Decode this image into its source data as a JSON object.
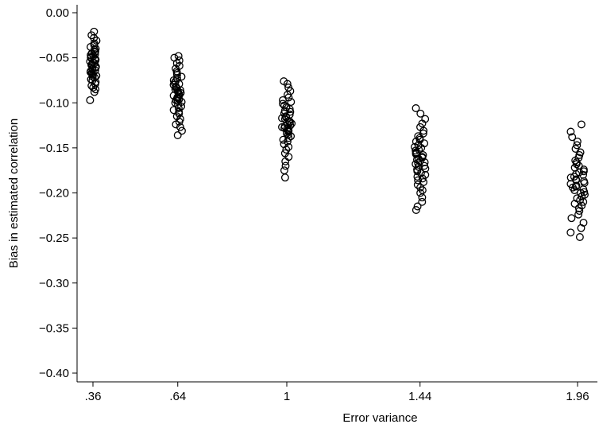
{
  "chart_data": {
    "type": "scatter",
    "title": "",
    "xlabel": "Error variance",
    "ylabel": "Bias in estimated correlation",
    "xlim": [
      0.33,
      2.0
    ],
    "ylim": [
      -0.41,
      0.005
    ],
    "x_ticks": [
      {
        "value": 0.36,
        "label": ".36"
      },
      {
        "value": 0.64,
        "label": ".64"
      },
      {
        "value": 1.0,
        "label": "1"
      },
      {
        "value": 1.44,
        "label": "1.44"
      },
      {
        "value": 1.96,
        "label": "1.96"
      }
    ],
    "y_ticks": [
      {
        "value": 0.0,
        "label": "0.00"
      },
      {
        "value": -0.05,
        "label": "−0.05"
      },
      {
        "value": -0.1,
        "label": "−0.10"
      },
      {
        "value": -0.15,
        "label": "−0.15"
      },
      {
        "value": -0.2,
        "label": "−0.20"
      },
      {
        "value": -0.25,
        "label": "−0.25"
      },
      {
        "value": -0.3,
        "label": "−0.30"
      },
      {
        "value": -0.35,
        "label": "−0.35"
      },
      {
        "value": -0.4,
        "label": "−0.40"
      }
    ],
    "grid": false,
    "marker": "hollow-circle",
    "series": [
      {
        "x_center": 0.36,
        "x_jitter": 0.012,
        "points": [
          -0.021,
          -0.025,
          -0.028,
          -0.031,
          -0.034,
          -0.036,
          -0.038,
          -0.04,
          -0.041,
          -0.043,
          -0.044,
          -0.045,
          -0.046,
          -0.047,
          -0.048,
          -0.049,
          -0.05,
          -0.051,
          -0.052,
          -0.053,
          -0.054,
          -0.055,
          -0.056,
          -0.057,
          -0.058,
          -0.059,
          -0.06,
          -0.061,
          -0.062,
          -0.063,
          -0.064,
          -0.065,
          -0.066,
          -0.067,
          -0.068,
          -0.069,
          -0.07,
          -0.071,
          -0.072,
          -0.074,
          -0.075,
          -0.077,
          -0.079,
          -0.081,
          -0.083,
          -0.085,
          -0.088,
          -0.097
        ]
      },
      {
        "x_center": 0.64,
        "x_jitter": 0.014,
        "points": [
          -0.048,
          -0.05,
          -0.053,
          -0.056,
          -0.059,
          -0.062,
          -0.065,
          -0.067,
          -0.069,
          -0.071,
          -0.073,
          -0.075,
          -0.076,
          -0.078,
          -0.079,
          -0.08,
          -0.082,
          -0.083,
          -0.084,
          -0.085,
          -0.086,
          -0.087,
          -0.088,
          -0.089,
          -0.09,
          -0.091,
          -0.092,
          -0.093,
          -0.094,
          -0.095,
          -0.096,
          -0.097,
          -0.098,
          -0.099,
          -0.1,
          -0.102,
          -0.104,
          -0.106,
          -0.108,
          -0.11,
          -0.112,
          -0.115,
          -0.118,
          -0.121,
          -0.124,
          -0.127,
          -0.131,
          -0.136
        ]
      },
      {
        "x_center": 1.0,
        "x_jitter": 0.016,
        "points": [
          -0.076,
          -0.079,
          -0.083,
          -0.087,
          -0.091,
          -0.094,
          -0.097,
          -0.099,
          -0.101,
          -0.103,
          -0.105,
          -0.107,
          -0.109,
          -0.11,
          -0.112,
          -0.113,
          -0.115,
          -0.116,
          -0.117,
          -0.118,
          -0.12,
          -0.121,
          -0.122,
          -0.123,
          -0.124,
          -0.125,
          -0.126,
          -0.127,
          -0.128,
          -0.129,
          -0.13,
          -0.131,
          -0.132,
          -0.134,
          -0.135,
          -0.137,
          -0.139,
          -0.141,
          -0.143,
          -0.146,
          -0.149,
          -0.152,
          -0.156,
          -0.16,
          -0.165,
          -0.17,
          -0.175,
          -0.183
        ]
      },
      {
        "x_center": 1.44,
        "x_jitter": 0.018,
        "points": [
          -0.106,
          -0.112,
          -0.118,
          -0.123,
          -0.127,
          -0.131,
          -0.134,
          -0.137,
          -0.139,
          -0.141,
          -0.143,
          -0.145,
          -0.147,
          -0.149,
          -0.15,
          -0.152,
          -0.153,
          -0.155,
          -0.156,
          -0.157,
          -0.158,
          -0.16,
          -0.161,
          -0.162,
          -0.163,
          -0.165,
          -0.166,
          -0.167,
          -0.168,
          -0.17,
          -0.171,
          -0.173,
          -0.174,
          -0.176,
          -0.178,
          -0.18,
          -0.182,
          -0.184,
          -0.186,
          -0.188,
          -0.191,
          -0.194,
          -0.197,
          -0.2,
          -0.205,
          -0.21,
          -0.215,
          -0.219
        ]
      },
      {
        "x_center": 1.96,
        "x_jitter": 0.024,
        "points": [
          -0.124,
          -0.132,
          -0.138,
          -0.143,
          -0.147,
          -0.151,
          -0.155,
          -0.158,
          -0.161,
          -0.164,
          -0.166,
          -0.168,
          -0.17,
          -0.172,
          -0.174,
          -0.176,
          -0.177,
          -0.179,
          -0.18,
          -0.182,
          -0.183,
          -0.185,
          -0.186,
          -0.187,
          -0.189,
          -0.19,
          -0.192,
          -0.193,
          -0.194,
          -0.196,
          -0.197,
          -0.199,
          -0.2,
          -0.202,
          -0.204,
          -0.206,
          -0.208,
          -0.21,
          -0.212,
          -0.214,
          -0.217,
          -0.22,
          -0.224,
          -0.228,
          -0.233,
          -0.239,
          -0.244,
          -0.249
        ]
      }
    ]
  }
}
